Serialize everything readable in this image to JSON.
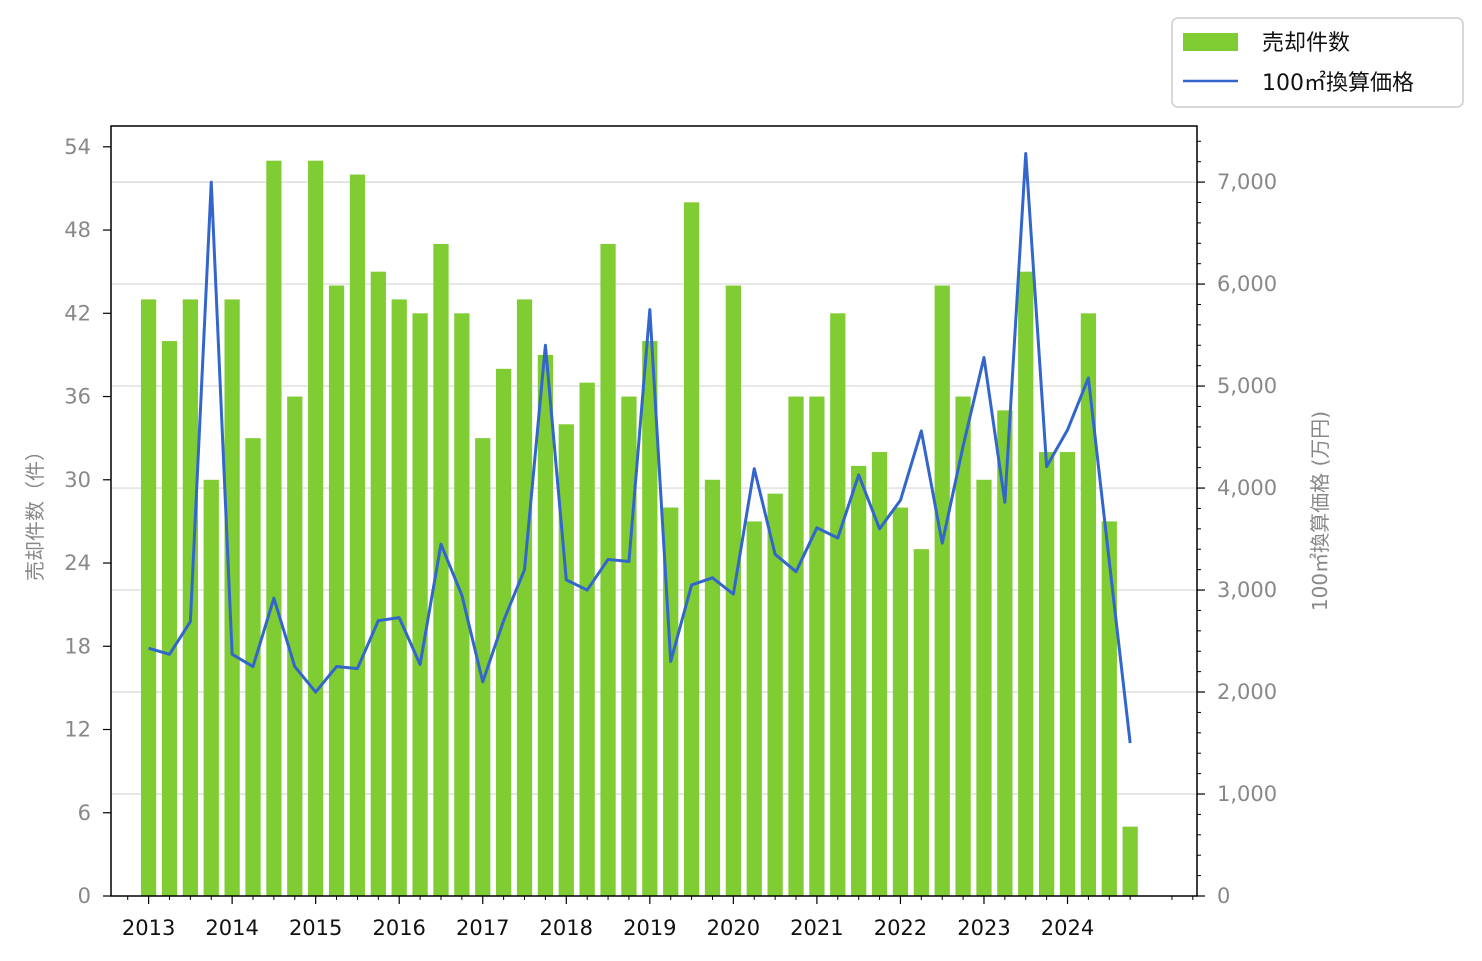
{
  "chart_data": {
    "type": "bar+line",
    "title": "",
    "x": [
      2013.0,
      2013.25,
      2013.5,
      2013.75,
      2014.0,
      2014.25,
      2014.5,
      2014.75,
      2015.0,
      2015.25,
      2015.5,
      2015.75,
      2016.0,
      2016.25,
      2016.5,
      2016.75,
      2017.0,
      2017.25,
      2017.5,
      2017.75,
      2018.0,
      2018.25,
      2018.5,
      2018.75,
      2019.0,
      2019.25,
      2019.5,
      2019.75,
      2020.0,
      2020.25,
      2020.5,
      2020.75,
      2021.0,
      2021.25,
      2021.5,
      2021.75,
      2022.0,
      2022.25,
      2022.5,
      2022.75,
      2023.0,
      2023.25,
      2023.5,
      2023.75,
      2024.0,
      2024.25,
      2024.5,
      2024.75
    ],
    "x_tick_labels": [
      "2013",
      "2014",
      "2015",
      "2016",
      "2017",
      "2018",
      "2019",
      "2020",
      "2021",
      "2022",
      "2023",
      "2024"
    ],
    "xlim": [
      2012.55,
      2025.55
    ],
    "series": [
      {
        "name": "売却件数",
        "type": "bar",
        "axis": "left",
        "color": "#7fcc33",
        "values": [
          43,
          40,
          43,
          30,
          43,
          33,
          53,
          36,
          53,
          44,
          52,
          45,
          43,
          42,
          47,
          42,
          33,
          38,
          43,
          39,
          34,
          37,
          47,
          36,
          40,
          28,
          50,
          30,
          44,
          27,
          29,
          36,
          36,
          42,
          31,
          32,
          28,
          25,
          44,
          36,
          30,
          35,
          45,
          32,
          32,
          42,
          27,
          5
        ]
      },
      {
        "name": "100㎡換算価格",
        "type": "line",
        "axis": "right",
        "color": "#3366cc",
        "values": [
          2430,
          2370,
          2690,
          7000,
          2370,
          2250,
          2920,
          2250,
          2000,
          2250,
          2230,
          2700,
          2730,
          2270,
          3450,
          2950,
          2100,
          2700,
          3200,
          5400,
          3100,
          3000,
          3300,
          3280,
          5750,
          2300,
          3050,
          3120,
          2960,
          4190,
          3350,
          3180,
          3610,
          3510,
          4130,
          3600,
          3880,
          4560,
          3460,
          4410,
          5280,
          3860,
          7280,
          4210,
          4570,
          5080,
          3280,
          1500
        ]
      }
    ],
    "y_left": {
      "label": "売却件数（件）",
      "ylim": [
        0,
        55.5
      ],
      "ticks": [
        "0",
        "6",
        "12",
        "18",
        "24",
        "30",
        "36",
        "42",
        "48",
        "54"
      ]
    },
    "y_right": {
      "label": "100㎡換算価格 (万円)",
      "ylim": [
        0,
        7550
      ],
      "ticks": [
        "0",
        "1,000",
        "2,000",
        "3,000",
        "4,000",
        "5,000",
        "6,000",
        "7,000"
      ]
    },
    "grid": "horizontal (right axis)",
    "legend_position": "top-right, outside"
  },
  "legend": {
    "bar_label": "売却件数",
    "line_label": "100㎡換算価格"
  }
}
